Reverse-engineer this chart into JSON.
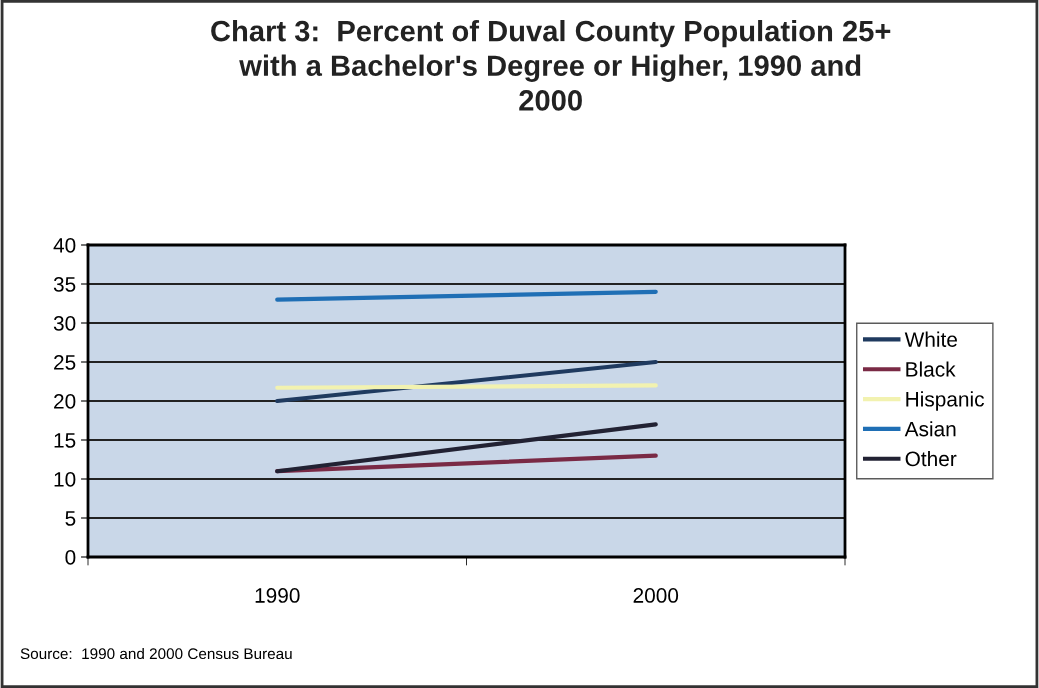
{
  "chart_data": {
    "type": "line",
    "title": "Chart 3:  Percent of Duval County Population 25+\nwith a Bachelor's Degree or Higher, 1990 and\n2000",
    "categories": [
      "1990",
      "2000"
    ],
    "series": [
      {
        "name": "White",
        "color": "#1f3a5f",
        "values": [
          20,
          25
        ]
      },
      {
        "name": "Black",
        "color": "#7a2a45",
        "values": [
          11,
          13
        ]
      },
      {
        "name": "Hispanic",
        "color": "#f2f2b0",
        "values": [
          21.7,
          22
        ]
      },
      {
        "name": "Asian",
        "color": "#1f6fb5",
        "values": [
          33,
          34
        ]
      },
      {
        "name": "Other",
        "color": "#222233",
        "values": [
          11,
          17
        ]
      }
    ],
    "ylim": [
      0,
      40
    ],
    "yticks": [
      0,
      5,
      10,
      15,
      20,
      25,
      30,
      35,
      40
    ],
    "grid": "y",
    "legend": "right",
    "marker": "none",
    "line_style": "solid",
    "annotations": [
      "Source:  1990 and 2000 Census Bureau"
    ]
  }
}
